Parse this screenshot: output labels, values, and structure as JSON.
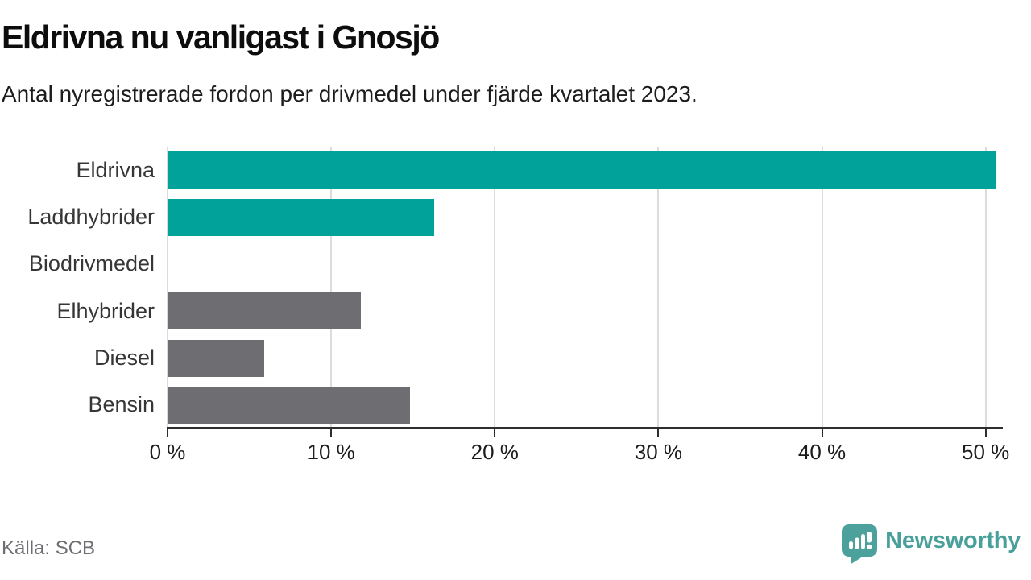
{
  "header": {
    "title": "Eldrivna nu vanligast i Gnosjö",
    "subtitle": "Antal nyregistrerade fordon per drivmedel under fjärde kvartalet 2023."
  },
  "chart_data": {
    "type": "bar",
    "orientation": "horizontal",
    "title": "Eldrivna nu vanligast i Gnosjö",
    "subtitle": "Antal nyregistrerade fordon per drivmedel under fjärde kvartalet 2023.",
    "categories": [
      "Eldrivna",
      "Laddhybrider",
      "Biodrivmedel",
      "Elhybrider",
      "Diesel",
      "Bensin"
    ],
    "values": [
      50.6,
      16.3,
      0,
      11.8,
      5.9,
      14.8
    ],
    "unit": "%",
    "xlabel": "",
    "ylabel": "",
    "xlim": [
      0,
      51
    ],
    "xticks": [
      0,
      10,
      20,
      30,
      40,
      50
    ],
    "tick_suffix": " %",
    "grid": true,
    "legend": "none",
    "highlight_color": "#00a29a",
    "default_color": "#6e6e72",
    "bar_colors": [
      "#00a29a",
      "#00a29a",
      "#6e6e72",
      "#6e6e72",
      "#6e6e72",
      "#6e6e72"
    ]
  },
  "footer": {
    "source": "Källa: SCB",
    "brand": "Newsworthy",
    "brand_color": "#49a09b",
    "icon_color": "#4da19c"
  }
}
